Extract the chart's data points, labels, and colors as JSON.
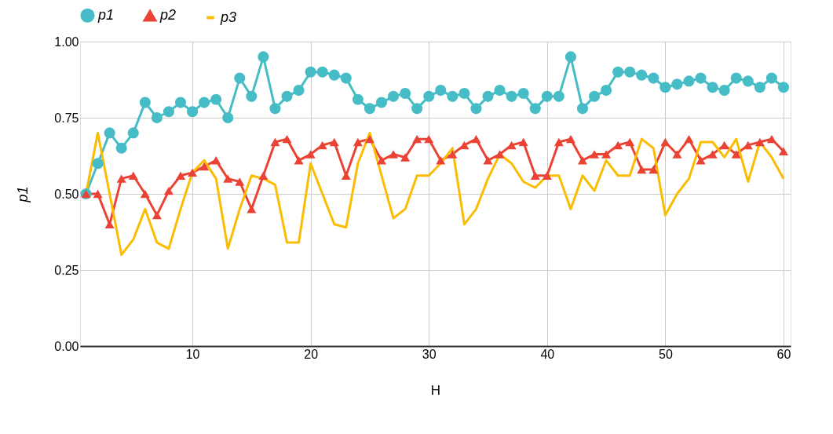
{
  "chart_data": {
    "type": "line",
    "xlabel": "H",
    "ylabel": "p1",
    "x": [
      1,
      2,
      3,
      4,
      5,
      6,
      7,
      8,
      9,
      10,
      11,
      12,
      13,
      14,
      15,
      16,
      17,
      18,
      19,
      20,
      21,
      22,
      23,
      24,
      25,
      26,
      27,
      28,
      29,
      30,
      31,
      32,
      33,
      34,
      35,
      36,
      37,
      38,
      39,
      40,
      41,
      42,
      43,
      44,
      45,
      46,
      47,
      48,
      49,
      50,
      51,
      52,
      53,
      54,
      55,
      56,
      57,
      58,
      59,
      60
    ],
    "series": [
      {
        "name": "p1",
        "color": "#46bdc6",
        "marker": "circle",
        "values": [
          0.5,
          0.6,
          0.7,
          0.65,
          0.7,
          0.8,
          0.75,
          0.77,
          0.8,
          0.77,
          0.8,
          0.81,
          0.75,
          0.88,
          0.82,
          0.95,
          0.78,
          0.82,
          0.84,
          0.9,
          0.9,
          0.89,
          0.88,
          0.81,
          0.78,
          0.8,
          0.82,
          0.83,
          0.78,
          0.82,
          0.84,
          0.82,
          0.83,
          0.78,
          0.82,
          0.84,
          0.82,
          0.83,
          0.78,
          0.82,
          0.82,
          0.95,
          0.78,
          0.82,
          0.84,
          0.9,
          0.9,
          0.89,
          0.88,
          0.85,
          0.86,
          0.87,
          0.88,
          0.85,
          0.84,
          0.88,
          0.87,
          0.85,
          0.88,
          0.85
        ]
      },
      {
        "name": "p2",
        "color": "#ea4335",
        "marker": "triangle",
        "values": [
          0.5,
          0.5,
          0.4,
          0.55,
          0.56,
          0.5,
          0.43,
          0.51,
          0.56,
          0.57,
          0.59,
          0.61,
          0.55,
          0.54,
          0.45,
          0.56,
          0.67,
          0.68,
          0.61,
          0.63,
          0.66,
          0.67,
          0.56,
          0.67,
          0.68,
          0.61,
          0.63,
          0.62,
          0.68,
          0.68,
          0.61,
          0.63,
          0.66,
          0.68,
          0.61,
          0.63,
          0.66,
          0.67,
          0.56,
          0.56,
          0.67,
          0.68,
          0.61,
          0.63,
          0.63,
          0.66,
          0.67,
          0.58,
          0.58,
          0.67,
          0.63,
          0.68,
          0.61,
          0.63,
          0.66,
          0.63,
          0.66,
          0.67,
          0.68,
          0.64
        ]
      },
      {
        "name": "p3",
        "color": "#fbbc04",
        "marker": "none",
        "values": [
          0.5,
          0.7,
          0.5,
          0.3,
          0.35,
          0.45,
          0.34,
          0.32,
          0.45,
          0.57,
          0.61,
          0.55,
          0.32,
          0.45,
          0.56,
          0.55,
          0.53,
          0.34,
          0.34,
          0.6,
          0.5,
          0.4,
          0.39,
          0.6,
          0.7,
          0.56,
          0.42,
          0.45,
          0.56,
          0.56,
          0.6,
          0.65,
          0.4,
          0.45,
          0.55,
          0.63,
          0.6,
          0.54,
          0.52,
          0.56,
          0.56,
          0.45,
          0.56,
          0.51,
          0.61,
          0.56,
          0.56,
          0.68,
          0.65,
          0.43,
          0.5,
          0.55,
          0.67,
          0.67,
          0.62,
          0.68,
          0.54,
          0.67,
          0.62,
          0.55
        ]
      }
    ],
    "xlim": [
      0.5,
      60.6
    ],
    "xticks": [
      10,
      20,
      30,
      40,
      50,
      60
    ],
    "ylim": [
      0,
      1
    ],
    "yticks": [
      {
        "value": 0,
        "label": "0.00"
      },
      {
        "value": 0.25,
        "label": "0.25"
      },
      {
        "value": 0.5,
        "label": "0.50"
      },
      {
        "value": 0.75,
        "label": "0.75"
      },
      {
        "value": 1,
        "label": "1.00"
      }
    ],
    "grid": true,
    "legend": "top",
    "line_style": "solid"
  }
}
